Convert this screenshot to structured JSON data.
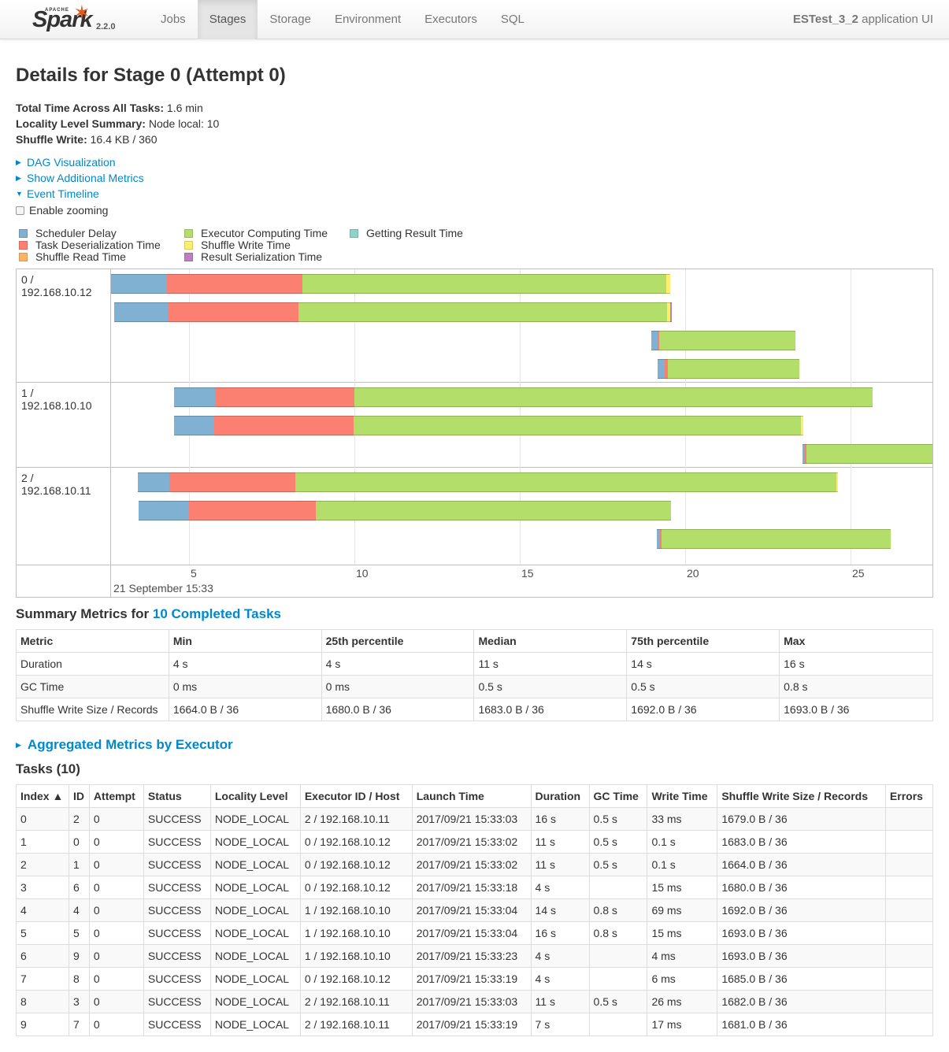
{
  "navbar": {
    "brand_apache": "APACHE",
    "brand_name": "Spark",
    "version": "2.2.0",
    "items": [
      {
        "label": "Jobs",
        "active": false
      },
      {
        "label": "Stages",
        "active": true
      },
      {
        "label": "Storage",
        "active": false
      },
      {
        "label": "Environment",
        "active": false
      },
      {
        "label": "Executors",
        "active": false
      },
      {
        "label": "SQL",
        "active": false
      }
    ],
    "app_name": "ESTest_3_2",
    "app_suffix": "application UI"
  },
  "page": {
    "title": "Details for Stage 0 (Attempt 0)",
    "summary": [
      {
        "label": "Total Time Across All Tasks:",
        "value": "1.6 min"
      },
      {
        "label": "Locality Level Summary:",
        "value": "Node local: 10"
      },
      {
        "label": "Shuffle Write:",
        "value": "16.4 KB / 360"
      }
    ],
    "toggles": {
      "dag": "DAG Visualization",
      "additional": "Show Additional Metrics",
      "timeline": "Event Timeline"
    },
    "zoom_label": "Enable zooming"
  },
  "legend": [
    {
      "label": "Scheduler Delay",
      "color": "#80b1d3"
    },
    {
      "label": "Task Deserialization Time",
      "color": "#fb8072"
    },
    {
      "label": "Shuffle Read Time",
      "color": "#fdb462"
    },
    {
      "label": "Executor Computing Time",
      "color": "#b3de69"
    },
    {
      "label": "Shuffle Write Time",
      "color": "#ffed6f"
    },
    {
      "label": "Result Serialization Time",
      "color": "#bc80bd"
    },
    {
      "label": "Getting Result Time",
      "color": "#8dd3c7"
    }
  ],
  "timeline": {
    "groups": [
      {
        "label": "0 / 192.168.10.12"
      },
      {
        "label": "1 / 192.168.10.10"
      },
      {
        "label": "2 / 192.168.10.11"
      }
    ],
    "axis_ticks": [
      "5",
      "10",
      "15",
      "20",
      "25"
    ],
    "axis_major": "21 September 15:33"
  },
  "summary_metrics": {
    "title_prefix": "Summary Metrics for",
    "title_link": "10 Completed Tasks",
    "headers": [
      "Metric",
      "Min",
      "25th percentile",
      "Median",
      "75th percentile",
      "Max"
    ],
    "rows": [
      [
        "Duration",
        "4 s",
        "4 s",
        "11 s",
        "14 s",
        "16 s"
      ],
      [
        "GC Time",
        "0 ms",
        "0 ms",
        "0.5 s",
        "0.5 s",
        "0.8 s"
      ],
      [
        "Shuffle Write Size / Records",
        "1664.0 B / 36",
        "1680.0 B / 36",
        "1683.0 B / 36",
        "1692.0 B / 36",
        "1693.0 B / 36"
      ]
    ]
  },
  "aggregated": {
    "label": "Aggregated Metrics by Executor"
  },
  "tasks": {
    "title": "Tasks (10)",
    "headers": [
      "Index ▲",
      "ID",
      "Attempt",
      "Status",
      "Locality Level",
      "Executor ID / Host",
      "Launch Time",
      "Duration",
      "GC Time",
      "Write Time",
      "Shuffle Write Size / Records",
      "Errors"
    ],
    "rows": [
      [
        "0",
        "2",
        "0",
        "SUCCESS",
        "NODE_LOCAL",
        "2 / 192.168.10.11",
        "2017/09/21 15:33:03",
        "16 s",
        "0.5 s",
        "33 ms",
        "1679.0 B / 36",
        ""
      ],
      [
        "1",
        "0",
        "0",
        "SUCCESS",
        "NODE_LOCAL",
        "0 / 192.168.10.12",
        "2017/09/21 15:33:02",
        "11 s",
        "0.5 s",
        "0.1 s",
        "1683.0 B / 36",
        ""
      ],
      [
        "2",
        "1",
        "0",
        "SUCCESS",
        "NODE_LOCAL",
        "0 / 192.168.10.12",
        "2017/09/21 15:33:02",
        "11 s",
        "0.5 s",
        "0.1 s",
        "1664.0 B / 36",
        ""
      ],
      [
        "3",
        "6",
        "0",
        "SUCCESS",
        "NODE_LOCAL",
        "0 / 192.168.10.12",
        "2017/09/21 15:33:18",
        "4 s",
        "",
        "15 ms",
        "1680.0 B / 36",
        ""
      ],
      [
        "4",
        "4",
        "0",
        "SUCCESS",
        "NODE_LOCAL",
        "1 / 192.168.10.10",
        "2017/09/21 15:33:04",
        "14 s",
        "0.8 s",
        "69 ms",
        "1692.0 B / 36",
        ""
      ],
      [
        "5",
        "5",
        "0",
        "SUCCESS",
        "NODE_LOCAL",
        "1 / 192.168.10.10",
        "2017/09/21 15:33:04",
        "16 s",
        "0.8 s",
        "15 ms",
        "1693.0 B / 36",
        ""
      ],
      [
        "6",
        "9",
        "0",
        "SUCCESS",
        "NODE_LOCAL",
        "1 / 192.168.10.10",
        "2017/09/21 15:33:23",
        "4 s",
        "",
        "4 ms",
        "1693.0 B / 36",
        ""
      ],
      [
        "7",
        "8",
        "0",
        "SUCCESS",
        "NODE_LOCAL",
        "0 / 192.168.10.12",
        "2017/09/21 15:33:19",
        "4 s",
        "",
        "6 ms",
        "1685.0 B / 36",
        ""
      ],
      [
        "8",
        "3",
        "0",
        "SUCCESS",
        "NODE_LOCAL",
        "2 / 192.168.10.11",
        "2017/09/21 15:33:03",
        "11 s",
        "0.5 s",
        "26 ms",
        "1682.0 B / 36",
        ""
      ],
      [
        "9",
        "7",
        "0",
        "SUCCESS",
        "NODE_LOCAL",
        "2 / 192.168.10.11",
        "2017/09/21 15:33:19",
        "7 s",
        "",
        "17 ms",
        "1681.0 B / 36",
        ""
      ]
    ]
  }
}
